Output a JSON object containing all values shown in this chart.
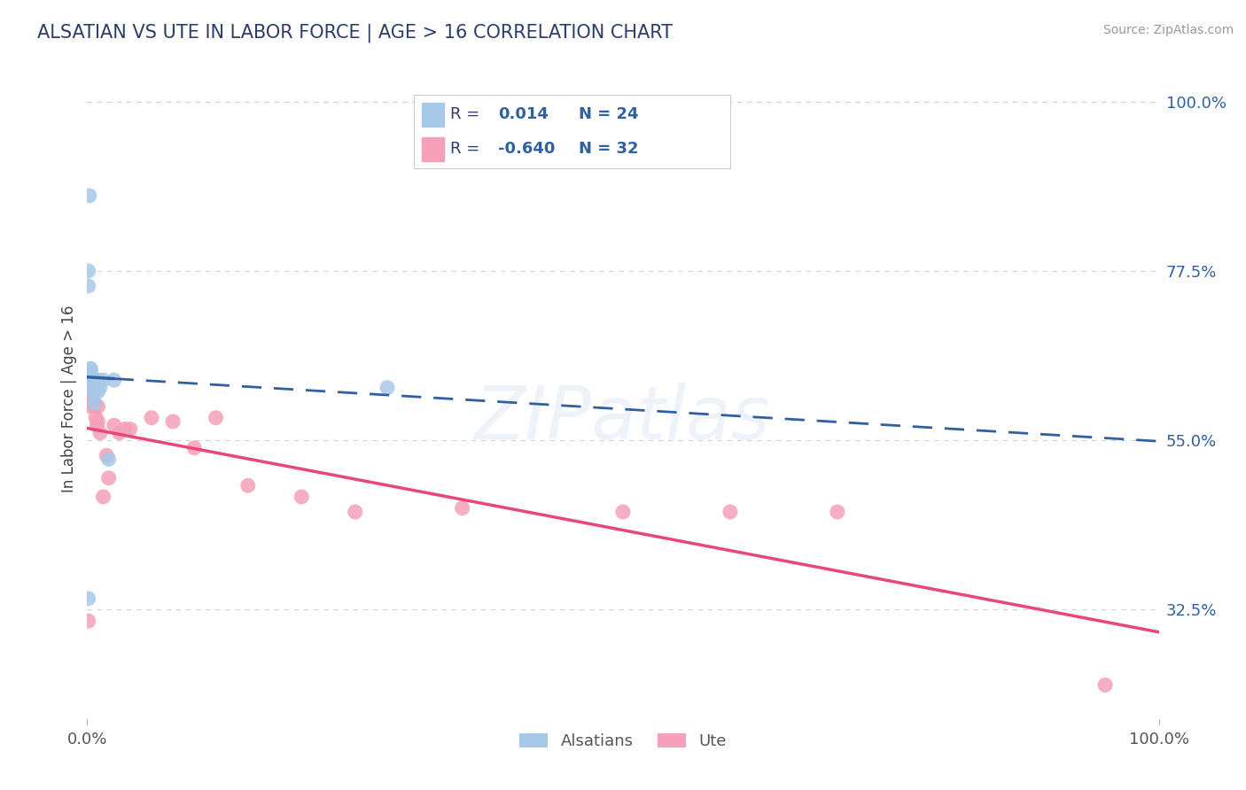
{
  "title": "ALSATIAN VS UTE IN LABOR FORCE | AGE > 16 CORRELATION CHART",
  "source_text": "Source: ZipAtlas.com",
  "ylabel": "In Labor Force | Age > 16",
  "xmin": 0.0,
  "xmax": 1.0,
  "ymin": 0.18,
  "ymax": 1.03,
  "yticks": [
    0.325,
    0.55,
    0.775,
    1.0
  ],
  "ytick_labels": [
    "32.5%",
    "55.0%",
    "77.5%",
    "100.0%"
  ],
  "xtick_labels": [
    "0.0%",
    "100.0%"
  ],
  "r_alsatian": 0.014,
  "n_alsatian": 24,
  "r_ute": -0.64,
  "n_ute": 32,
  "alsatian_color": "#a8c8e8",
  "ute_color": "#f4a0b8",
  "alsatian_line_color": "#3060a0",
  "ute_line_color": "#e84878",
  "background_color": "#ffffff",
  "grid_color": "#c8d4e8",
  "watermark": "ZIPatlas",
  "alsatian_x": [
    0.001,
    0.001,
    0.002,
    0.002,
    0.003,
    0.003,
    0.003,
    0.004,
    0.004,
    0.005,
    0.005,
    0.006,
    0.007,
    0.008,
    0.008,
    0.009,
    0.01,
    0.01,
    0.012,
    0.015,
    0.02,
    0.025,
    0.28,
    0.001
  ],
  "alsatian_y": [
    0.775,
    0.755,
    0.875,
    0.635,
    0.64,
    0.645,
    0.645,
    0.63,
    0.635,
    0.615,
    0.62,
    0.625,
    0.6,
    0.63,
    0.625,
    0.62,
    0.63,
    0.615,
    0.62,
    0.63,
    0.525,
    0.63,
    0.62,
    0.34
  ],
  "ute_x": [
    0.001,
    0.002,
    0.003,
    0.004,
    0.005,
    0.005,
    0.006,
    0.007,
    0.008,
    0.009,
    0.01,
    0.01,
    0.012,
    0.015,
    0.018,
    0.02,
    0.025,
    0.03,
    0.035,
    0.04,
    0.06,
    0.08,
    0.1,
    0.12,
    0.15,
    0.2,
    0.25,
    0.35,
    0.5,
    0.6,
    0.7,
    0.95
  ],
  "ute_y": [
    0.31,
    0.625,
    0.595,
    0.6,
    0.62,
    0.61,
    0.6,
    0.595,
    0.58,
    0.57,
    0.575,
    0.595,
    0.56,
    0.475,
    0.53,
    0.5,
    0.57,
    0.56,
    0.565,
    0.565,
    0.58,
    0.575,
    0.54,
    0.58,
    0.49,
    0.475,
    0.455,
    0.46,
    0.455,
    0.455,
    0.455,
    0.225
  ],
  "legend_text_color": "#3060a0"
}
